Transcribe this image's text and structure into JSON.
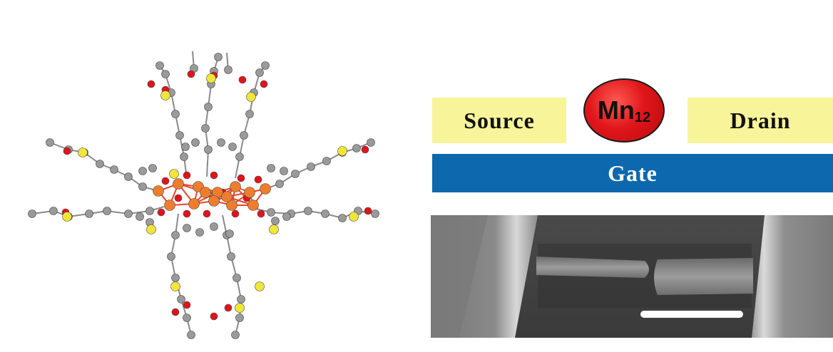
{
  "device": {
    "source_label": "Source",
    "drain_label": "Drain",
    "gate_label": "Gate",
    "molecule_label": "Mn",
    "molecule_subscript": "12"
  },
  "colors": {
    "electrode": "#f8f49a",
    "gate": "#0d68ad",
    "molecule_ball": "#e0161a",
    "atom_carbon": "#9a9a9a",
    "atom_oxygen": "#e0141c",
    "atom_sulfur": "#f0e63a",
    "atom_manganese": "#ef7d2e"
  },
  "images": {
    "left": "Mn12 molecular structure ball-and-stick model",
    "right_bottom": "SEM micrograph of electrode gap with scale bar"
  }
}
